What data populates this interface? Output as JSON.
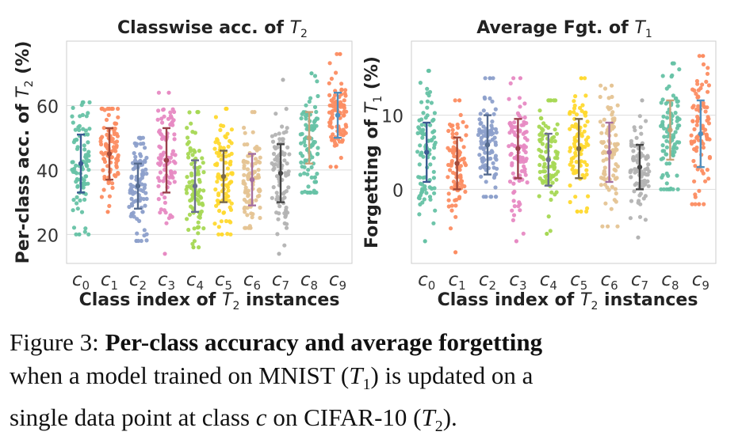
{
  "chart_data": [
    {
      "type": "scatter",
      "subtype": "strip_with_errorbars",
      "title": "Classwise acc. of T",
      "title_sub": "2",
      "ylabel": "Per-class acc. of T",
      "ylabel_sub": "2",
      "ylabel_suffix": " (%)",
      "xlabel": "Class index of T",
      "xlabel_sub": "2",
      "xlabel_suffix": " instances",
      "categories": [
        "c0",
        "c1",
        "c2",
        "c3",
        "c4",
        "c5",
        "c6",
        "c7",
        "c8",
        "c9"
      ],
      "ylim": [
        11,
        80
      ],
      "yticks": [
        20,
        40,
        60
      ],
      "grid": true,
      "means": [
        42,
        45,
        35,
        43,
        35,
        38,
        37,
        39,
        50,
        57
      ],
      "errors": [
        9,
        8,
        7,
        10,
        8,
        8,
        8,
        9,
        8,
        7
      ],
      "mins": [
        20,
        27,
        18,
        14,
        16,
        20,
        22,
        14,
        33,
        41
      ],
      "maxs": [
        61,
        59,
        50,
        64,
        58,
        59,
        58,
        68,
        70,
        76
      ],
      "points_per_class": 90
    },
    {
      "type": "scatter",
      "subtype": "strip_with_errorbars",
      "title": "Average Fgt. of T",
      "title_sub": "1",
      "ylabel": "Forgetting of T",
      "ylabel_sub": "1",
      "ylabel_suffix": " (%)",
      "xlabel": "Class index of T",
      "xlabel_sub": "2",
      "xlabel_suffix": " instances",
      "categories": [
        "c0",
        "c1",
        "c2",
        "c3",
        "c4",
        "c5",
        "c6",
        "c7",
        "c8",
        "c9"
      ],
      "ylim": [
        -10,
        20
      ],
      "yticks": [
        0,
        10
      ],
      "grid": true,
      "means": [
        5,
        3.5,
        6,
        5.5,
        4,
        5.5,
        5,
        3,
        8,
        7.5
      ],
      "errors": [
        4,
        3.5,
        4,
        4,
        3.5,
        4,
        4,
        3,
        4,
        4.5
      ],
      "mins": [
        -7,
        -8.5,
        -1,
        -7,
        -6,
        -3,
        -5,
        -6.5,
        0,
        -2
      ],
      "maxs": [
        16,
        12,
        15,
        15,
        12,
        15,
        14,
        12,
        17,
        18
      ],
      "points_per_class": 90
    }
  ],
  "palette": [
    "#66c2a5",
    "#fc8d62",
    "#8da0cb",
    "#e78ac3",
    "#a6d854",
    "#ffd92f",
    "#e5c494",
    "#b3b3b3",
    "#66c2a5",
    "#fc8d62"
  ],
  "errorbar_colors": [
    "#3b5b92",
    "#a24a3a",
    "#556b8f",
    "#9a3f4a",
    "#6b6f8f",
    "#7a6a4a",
    "#a56fa0",
    "#444444",
    "#c9a27a",
    "#4f8fbf"
  ],
  "caption": {
    "label": "Figure 3:",
    "bold": "Per-class accuracy and average forgetting",
    "text1": "when a model trained on MNIST (",
    "t1": "T",
    "t1_sub": "1",
    "text2": ") is updated on a",
    "text3": "single data point at class ",
    "c": "c",
    "text4": " on CIFAR-10 (",
    "t2": "T",
    "t2_sub": "2",
    "text5": ")."
  }
}
